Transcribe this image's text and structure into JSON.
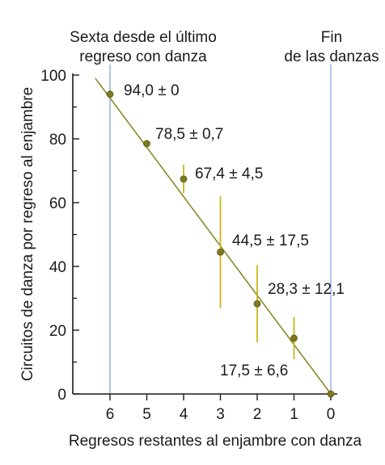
{
  "chart_data": {
    "type": "scatter",
    "title": "",
    "xlabel": "Regresos restantes al enjambre con danza",
    "ylabel": "Circuitos de danza por regreso al enjambre",
    "x_reversed": true,
    "xlim": [
      0,
      6
    ],
    "ylim": [
      0,
      100
    ],
    "x_ticks": [
      6,
      5,
      4,
      3,
      2,
      1,
      0
    ],
    "y_ticks": [
      0,
      20,
      40,
      60,
      80,
      100
    ],
    "grid": false,
    "points": [
      {
        "x": 6,
        "y": 94.0,
        "err": 0,
        "label": "94,0 ± 0"
      },
      {
        "x": 5,
        "y": 78.5,
        "err": 0.7,
        "label": "78,5 ± 0,7"
      },
      {
        "x": 4,
        "y": 67.4,
        "err": 4.5,
        "label": "67,4 ± 4,5"
      },
      {
        "x": 3,
        "y": 44.5,
        "err": 17.5,
        "label": "44,5 ± 17,5"
      },
      {
        "x": 2,
        "y": 28.3,
        "err": 12.1,
        "label": "28,3 ± 12,1"
      },
      {
        "x": 1,
        "y": 17.5,
        "err": 6.6,
        "label": "17,5 ± 6,6"
      },
      {
        "x": 0,
        "y": 0,
        "err": 0,
        "label": ""
      }
    ],
    "trend_line": {
      "from": [
        6.4,
        99
      ],
      "to": [
        0,
        0
      ]
    },
    "reference_lines": [
      {
        "x": 6,
        "label_lines": [
          "Sexta desde el último",
          "regreso con danza"
        ]
      },
      {
        "x": 0,
        "label_lines": [
          "Fin",
          "de las danzas"
        ]
      }
    ],
    "colors": {
      "marker": "#7d7a1e",
      "error_bar": "#c8b41a",
      "trend_line": "#8a8a2a",
      "reference_line": "#5f8fd6",
      "axis": "#1b1b1b"
    }
  }
}
